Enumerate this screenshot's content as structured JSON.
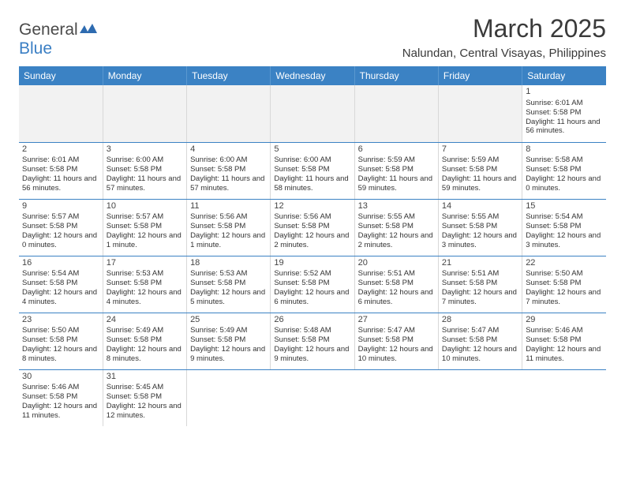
{
  "logo": {
    "textA": "General",
    "textB": "Blue"
  },
  "title": "March 2025",
  "location": "Nalundan, Central Visayas, Philippines",
  "colors": {
    "headerBg": "#3b82c4",
    "headerText": "#ffffff",
    "rowBorder": "#3b82c4",
    "logoBlue": "#3b7fc4"
  },
  "dayHeaders": [
    "Sunday",
    "Monday",
    "Tuesday",
    "Wednesday",
    "Thursday",
    "Friday",
    "Saturday"
  ],
  "weeks": [
    [
      null,
      null,
      null,
      null,
      null,
      null,
      {
        "n": "1",
        "sr": "Sunrise: 6:01 AM",
        "ss": "Sunset: 5:58 PM",
        "dl": "Daylight: 11 hours and 56 minutes."
      }
    ],
    [
      {
        "n": "2",
        "sr": "Sunrise: 6:01 AM",
        "ss": "Sunset: 5:58 PM",
        "dl": "Daylight: 11 hours and 56 minutes."
      },
      {
        "n": "3",
        "sr": "Sunrise: 6:00 AM",
        "ss": "Sunset: 5:58 PM",
        "dl": "Daylight: 11 hours and 57 minutes."
      },
      {
        "n": "4",
        "sr": "Sunrise: 6:00 AM",
        "ss": "Sunset: 5:58 PM",
        "dl": "Daylight: 11 hours and 57 minutes."
      },
      {
        "n": "5",
        "sr": "Sunrise: 6:00 AM",
        "ss": "Sunset: 5:58 PM",
        "dl": "Daylight: 11 hours and 58 minutes."
      },
      {
        "n": "6",
        "sr": "Sunrise: 5:59 AM",
        "ss": "Sunset: 5:58 PM",
        "dl": "Daylight: 11 hours and 59 minutes."
      },
      {
        "n": "7",
        "sr": "Sunrise: 5:59 AM",
        "ss": "Sunset: 5:58 PM",
        "dl": "Daylight: 11 hours and 59 minutes."
      },
      {
        "n": "8",
        "sr": "Sunrise: 5:58 AM",
        "ss": "Sunset: 5:58 PM",
        "dl": "Daylight: 12 hours and 0 minutes."
      }
    ],
    [
      {
        "n": "9",
        "sr": "Sunrise: 5:57 AM",
        "ss": "Sunset: 5:58 PM",
        "dl": "Daylight: 12 hours and 0 minutes."
      },
      {
        "n": "10",
        "sr": "Sunrise: 5:57 AM",
        "ss": "Sunset: 5:58 PM",
        "dl": "Daylight: 12 hours and 1 minute."
      },
      {
        "n": "11",
        "sr": "Sunrise: 5:56 AM",
        "ss": "Sunset: 5:58 PM",
        "dl": "Daylight: 12 hours and 1 minute."
      },
      {
        "n": "12",
        "sr": "Sunrise: 5:56 AM",
        "ss": "Sunset: 5:58 PM",
        "dl": "Daylight: 12 hours and 2 minutes."
      },
      {
        "n": "13",
        "sr": "Sunrise: 5:55 AM",
        "ss": "Sunset: 5:58 PM",
        "dl": "Daylight: 12 hours and 2 minutes."
      },
      {
        "n": "14",
        "sr": "Sunrise: 5:55 AM",
        "ss": "Sunset: 5:58 PM",
        "dl": "Daylight: 12 hours and 3 minutes."
      },
      {
        "n": "15",
        "sr": "Sunrise: 5:54 AM",
        "ss": "Sunset: 5:58 PM",
        "dl": "Daylight: 12 hours and 3 minutes."
      }
    ],
    [
      {
        "n": "16",
        "sr": "Sunrise: 5:54 AM",
        "ss": "Sunset: 5:58 PM",
        "dl": "Daylight: 12 hours and 4 minutes."
      },
      {
        "n": "17",
        "sr": "Sunrise: 5:53 AM",
        "ss": "Sunset: 5:58 PM",
        "dl": "Daylight: 12 hours and 4 minutes."
      },
      {
        "n": "18",
        "sr": "Sunrise: 5:53 AM",
        "ss": "Sunset: 5:58 PM",
        "dl": "Daylight: 12 hours and 5 minutes."
      },
      {
        "n": "19",
        "sr": "Sunrise: 5:52 AM",
        "ss": "Sunset: 5:58 PM",
        "dl": "Daylight: 12 hours and 6 minutes."
      },
      {
        "n": "20",
        "sr": "Sunrise: 5:51 AM",
        "ss": "Sunset: 5:58 PM",
        "dl": "Daylight: 12 hours and 6 minutes."
      },
      {
        "n": "21",
        "sr": "Sunrise: 5:51 AM",
        "ss": "Sunset: 5:58 PM",
        "dl": "Daylight: 12 hours and 7 minutes."
      },
      {
        "n": "22",
        "sr": "Sunrise: 5:50 AM",
        "ss": "Sunset: 5:58 PM",
        "dl": "Daylight: 12 hours and 7 minutes."
      }
    ],
    [
      {
        "n": "23",
        "sr": "Sunrise: 5:50 AM",
        "ss": "Sunset: 5:58 PM",
        "dl": "Daylight: 12 hours and 8 minutes."
      },
      {
        "n": "24",
        "sr": "Sunrise: 5:49 AM",
        "ss": "Sunset: 5:58 PM",
        "dl": "Daylight: 12 hours and 8 minutes."
      },
      {
        "n": "25",
        "sr": "Sunrise: 5:49 AM",
        "ss": "Sunset: 5:58 PM",
        "dl": "Daylight: 12 hours and 9 minutes."
      },
      {
        "n": "26",
        "sr": "Sunrise: 5:48 AM",
        "ss": "Sunset: 5:58 PM",
        "dl": "Daylight: 12 hours and 9 minutes."
      },
      {
        "n": "27",
        "sr": "Sunrise: 5:47 AM",
        "ss": "Sunset: 5:58 PM",
        "dl": "Daylight: 12 hours and 10 minutes."
      },
      {
        "n": "28",
        "sr": "Sunrise: 5:47 AM",
        "ss": "Sunset: 5:58 PM",
        "dl": "Daylight: 12 hours and 10 minutes."
      },
      {
        "n": "29",
        "sr": "Sunrise: 5:46 AM",
        "ss": "Sunset: 5:58 PM",
        "dl": "Daylight: 12 hours and 11 minutes."
      }
    ],
    [
      {
        "n": "30",
        "sr": "Sunrise: 5:46 AM",
        "ss": "Sunset: 5:58 PM",
        "dl": "Daylight: 12 hours and 11 minutes."
      },
      {
        "n": "31",
        "sr": "Sunrise: 5:45 AM",
        "ss": "Sunset: 5:58 PM",
        "dl": "Daylight: 12 hours and 12 minutes."
      },
      null,
      null,
      null,
      null,
      null
    ]
  ]
}
